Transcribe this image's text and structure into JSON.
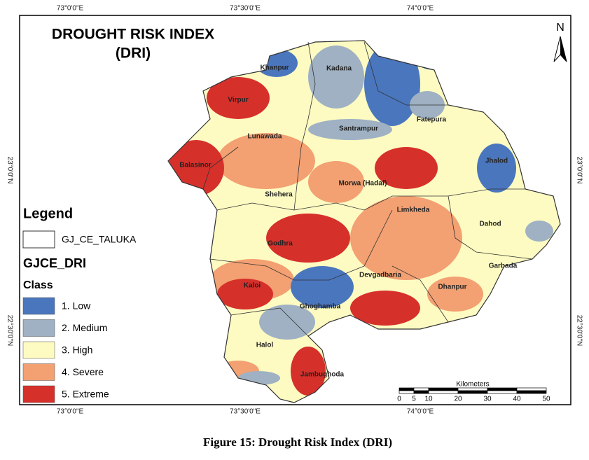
{
  "map": {
    "title": [
      "DROUGHT RISK INDEX",
      "(DRI)"
    ],
    "north": "N",
    "lon_labels": [
      "73°0'0\"E",
      "73°30'0\"E",
      "74°0'0\"E"
    ],
    "lat_labels": [
      "23°0'0\"N",
      "22°30'0\"N"
    ],
    "talukas": [
      "Khanpur",
      "Kadana",
      "Virpur",
      "Santrampur",
      "Fatepura",
      "Lunawada",
      "Balasinor",
      "Jhalod",
      "Morwa (Hadaf)",
      "Shehera",
      "Limkheda",
      "Dahod",
      "Godhra",
      "Garbada",
      "Devgadbaria",
      "Kaloi",
      "Dhanpur",
      "Ghoghamba",
      "Halol",
      "Jambughoda"
    ],
    "legend": {
      "title": "Legend",
      "boundary": "GJ_CE_TALUKA",
      "layer": "GJCE_DRI",
      "class_title": "Class",
      "classes": [
        {
          "label": "1. Low",
          "color": "#4a76be"
        },
        {
          "label": "2. Medium",
          "color": "#9fb1c3"
        },
        {
          "label": "3. High",
          "color": "#fdfbc2"
        },
        {
          "label": "4. Severe",
          "color": "#f3a072"
        },
        {
          "label": "5. Extreme",
          "color": "#d6302b"
        }
      ]
    },
    "scale": {
      "label": "Kilometers",
      "ticks": [
        0,
        5,
        10,
        20,
        30,
        40,
        50
      ]
    }
  },
  "caption": "Figure 15: Drought Risk Index (DRI)"
}
